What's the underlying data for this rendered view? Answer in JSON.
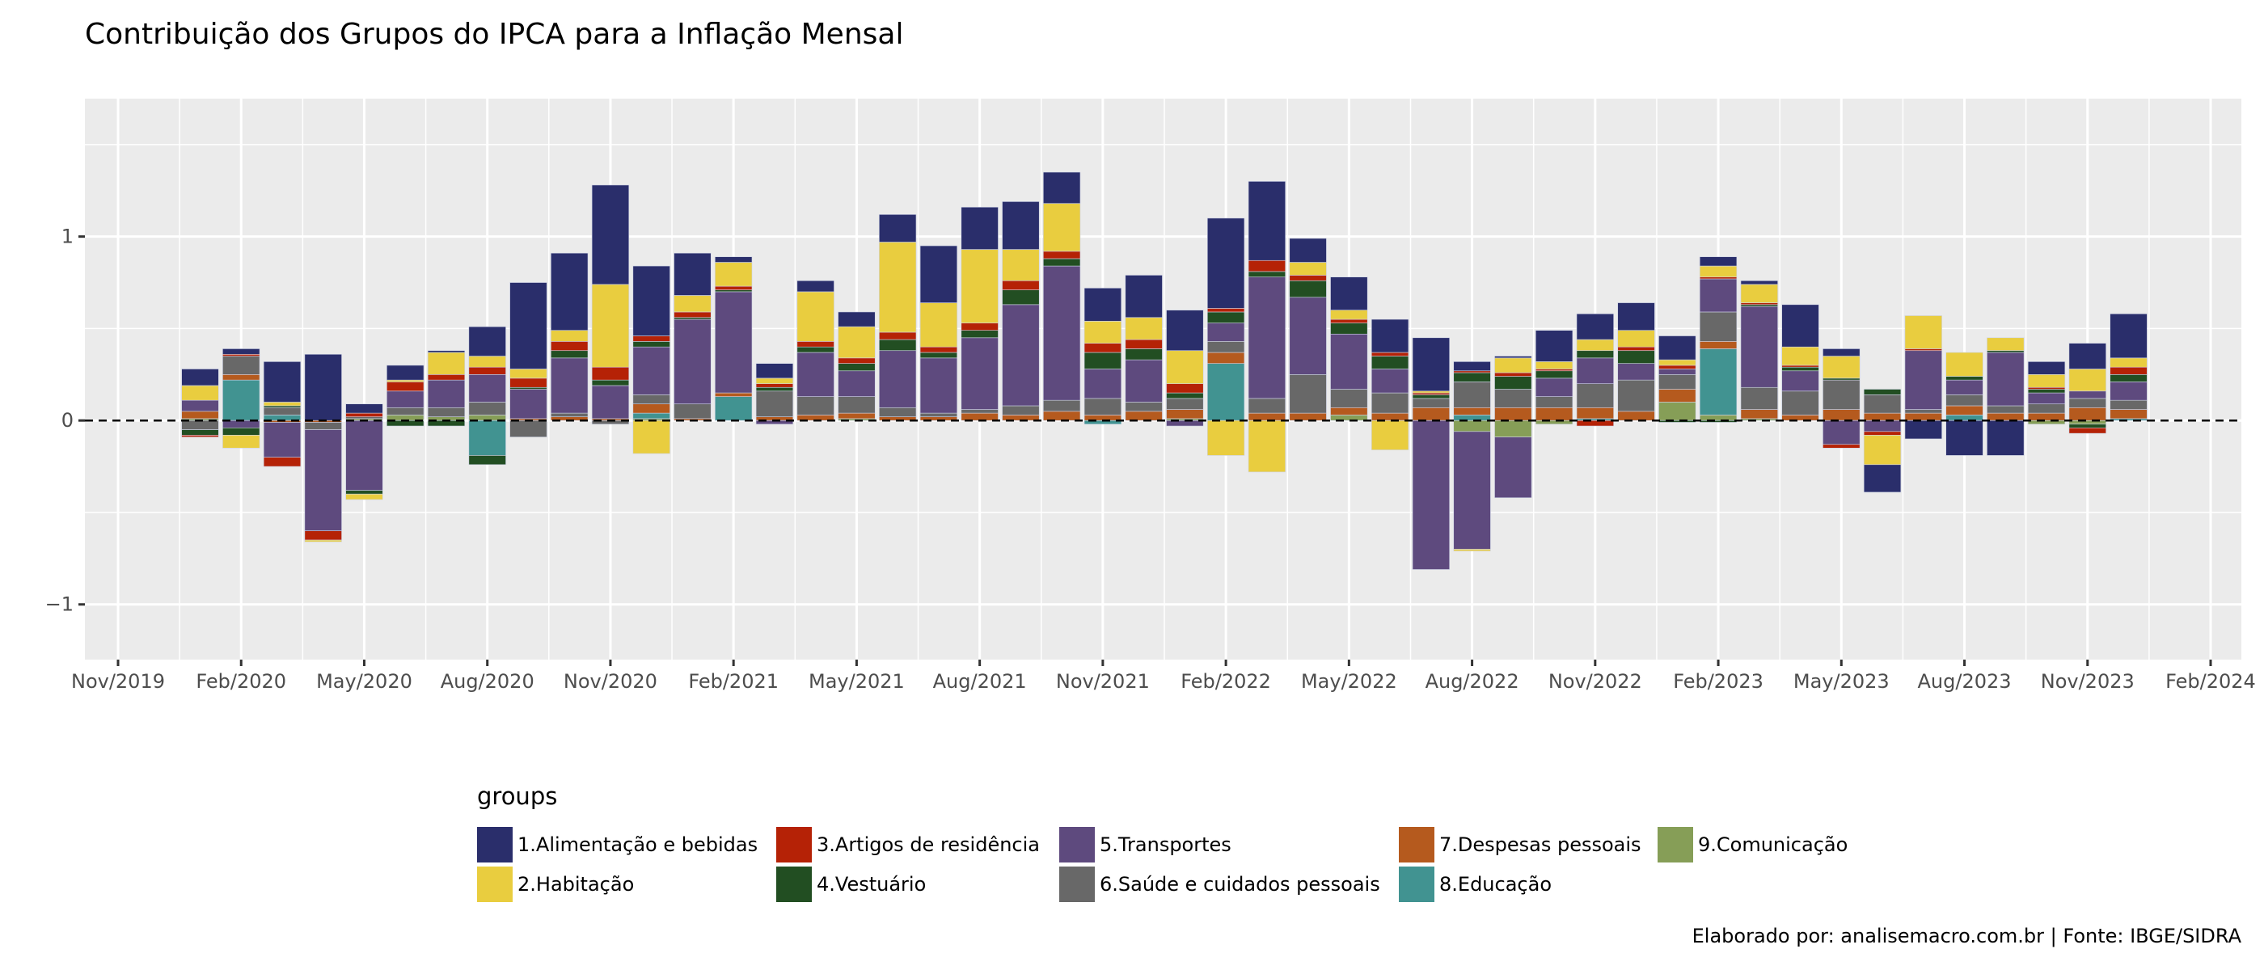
{
  "title": "Contribuição dos Grupos do IPCA para a Inflação Mensal",
  "caption": "Elaborado por: analisemacro.com.br | Fonte: IBGE/SIDRA",
  "chart_data": {
    "type": "bar",
    "stacked": true,
    "title": "Contribuição dos Grupos do IPCA para a Inflação Mensal",
    "xlabel": "",
    "ylabel": "",
    "ylim": [
      -1.3,
      1.75
    ],
    "y_ticks": [
      -1,
      0,
      1
    ],
    "y_tick_labels": [
      "−1",
      "0",
      "1"
    ],
    "x_ticks": [
      "Nov/2019",
      "Feb/2020",
      "May/2020",
      "Aug/2020",
      "Nov/2020",
      "Feb/2021",
      "May/2021",
      "Aug/2021",
      "Nov/2021",
      "Feb/2022",
      "May/2022",
      "Aug/2022",
      "Nov/2022",
      "Feb/2023",
      "May/2023",
      "Aug/2023",
      "Nov/2023",
      "Feb/2024"
    ],
    "x_tick_month_index": [
      -2,
      1,
      4,
      7,
      10,
      13,
      16,
      19,
      22,
      25,
      28,
      31,
      34,
      37,
      40,
      43,
      46,
      49
    ],
    "grid": true,
    "reference_line": {
      "y": 0,
      "style": "dashed",
      "color": "#000000"
    },
    "legend": {
      "title": "groups",
      "position": "bottom"
    },
    "categories": [
      "Jan/2020",
      "Feb/2020",
      "Mar/2020",
      "Apr/2020",
      "May/2020",
      "Jun/2020",
      "Jul/2020",
      "Aug/2020",
      "Sep/2020",
      "Oct/2020",
      "Nov/2020",
      "Dec/2020",
      "Jan/2021",
      "Feb/2021",
      "Mar/2021",
      "Apr/2021",
      "May/2021",
      "Jun/2021",
      "Jul/2021",
      "Aug/2021",
      "Sep/2021",
      "Oct/2021",
      "Nov/2021",
      "Dec/2021",
      "Jan/2022",
      "Feb/2022",
      "Mar/2022",
      "Apr/2022",
      "May/2022",
      "Jun/2022",
      "Jul/2022",
      "Aug/2022",
      "Sep/2022",
      "Oct/2022",
      "Nov/2022",
      "Dec/2022",
      "Jan/2023",
      "Feb/2023",
      "Mar/2023",
      "Apr/2023",
      "May/2023",
      "Jun/2023",
      "Jul/2023",
      "Aug/2023",
      "Sep/2023",
      "Oct/2023",
      "Nov/2023",
      "Dec/2023"
    ],
    "series": [
      {
        "name": "1.Alimentação e bebidas",
        "color": "#2a2e6b",
        "values": [
          0.09,
          0.03,
          0.22,
          0.36,
          0.05,
          0.08,
          0.01,
          0.16,
          0.47,
          0.42,
          0.54,
          0.38,
          0.23,
          0.03,
          0.08,
          0.06,
          0.08,
          0.15,
          0.31,
          0.23,
          0.26,
          0.17,
          0.18,
          0.23,
          0.22,
          0.49,
          0.43,
          0.13,
          0.18,
          0.18,
          0.29,
          0.05,
          0.01,
          0.17,
          0.14,
          0.15,
          0.13,
          0.05,
          0.02,
          0.23,
          0.04,
          -0.15,
          -0.1,
          -0.19,
          -0.19,
          0.07,
          0.14,
          0.24
        ]
      },
      {
        "name": "2.Habitação",
        "color": "#e9cd3f",
        "values": [
          0.08,
          -0.07,
          0.02,
          -0.01,
          -0.03,
          0.01,
          0.12,
          0.06,
          0.05,
          0.06,
          0.45,
          -0.18,
          0.09,
          0.13,
          0.03,
          0.27,
          0.17,
          0.49,
          0.24,
          0.4,
          0.17,
          0.26,
          0.12,
          0.12,
          0.18,
          -0.19,
          -0.28,
          0.07,
          0.05,
          -0.16,
          0.01,
          -0.01,
          0.08,
          0.04,
          0.06,
          0.09,
          0.03,
          0.06,
          0.1,
          0.1,
          0.12,
          -0.16,
          0.18,
          0.13,
          0.07,
          0.07,
          0.12,
          0.05
        ]
      },
      {
        "name": "3.Artigos de residência",
        "color": "#b52206",
        "values": [
          -0.01,
          0.01,
          -0.05,
          -0.05,
          0.02,
          0.05,
          0.03,
          0.04,
          0.05,
          0.05,
          0.07,
          0.03,
          0.03,
          0.02,
          0.02,
          0.03,
          0.03,
          0.04,
          0.03,
          0.04,
          0.05,
          0.04,
          0.05,
          0.05,
          0.05,
          0.02,
          0.06,
          0.03,
          0.02,
          0.02,
          0.01,
          0.01,
          0.02,
          0.01,
          -0.03,
          0.02,
          0.02,
          0.01,
          0.01,
          0.01,
          -0.02,
          -0.02,
          0.01,
          0.0,
          0.0,
          0.01,
          -0.03,
          0.04
        ]
      },
      {
        "name": "4.Vestuário",
        "color": "#224e22",
        "values": [
          -0.03,
          -0.04,
          0.01,
          0.0,
          -0.02,
          -0.03,
          -0.03,
          -0.05,
          0.01,
          0.04,
          0.03,
          0.03,
          0.01,
          0.01,
          0.02,
          0.03,
          0.04,
          0.06,
          0.03,
          0.04,
          0.08,
          0.04,
          0.09,
          0.06,
          0.03,
          0.06,
          0.03,
          0.09,
          0.06,
          0.07,
          0.02,
          0.05,
          0.07,
          0.04,
          0.04,
          0.07,
          -0.01,
          -0.01,
          0.01,
          0.02,
          0.01,
          0.03,
          0.0,
          0.02,
          0.01,
          0.02,
          -0.02,
          0.04
        ]
      },
      {
        "name": "5.Transportes",
        "color": "#5e4a7e",
        "values": [
          0.06,
          -0.04,
          -0.19,
          -0.55,
          -0.38,
          0.09,
          0.15,
          0.15,
          0.16,
          0.3,
          0.18,
          0.26,
          0.46,
          0.55,
          -0.02,
          0.24,
          0.14,
          0.31,
          0.3,
          0.39,
          0.55,
          0.73,
          0.16,
          0.23,
          -0.03,
          0.1,
          0.66,
          0.42,
          0.3,
          0.13,
          -0.81,
          -0.64,
          -0.33,
          0.1,
          0.14,
          0.09,
          0.03,
          0.18,
          0.44,
          0.11,
          -0.13,
          -0.06,
          0.32,
          0.08,
          0.29,
          0.06,
          0.04,
          0.1
        ]
      },
      {
        "name": "6.Saúde e cuidados pessoais",
        "color": "#686868",
        "values": [
          -0.05,
          0.1,
          0.04,
          -0.04,
          0.01,
          0.04,
          0.05,
          0.07,
          -0.09,
          0.02,
          -0.02,
          0.05,
          0.08,
          0.0,
          0.14,
          0.1,
          0.09,
          0.05,
          0.02,
          0.02,
          0.05,
          0.06,
          0.09,
          0.05,
          0.06,
          0.06,
          0.08,
          0.21,
          0.1,
          0.11,
          0.05,
          0.14,
          0.1,
          0.06,
          0.13,
          0.17,
          0.08,
          0.16,
          0.12,
          0.13,
          0.16,
          0.1,
          0.02,
          0.06,
          0.04,
          0.05,
          0.05,
          0.05
        ]
      },
      {
        "name": "7.Despesas pessoais",
        "color": "#b55a1e",
        "values": [
          0.04,
          0.03,
          -0.01,
          -0.01,
          0.0,
          0.0,
          0.0,
          0.0,
          0.01,
          0.02,
          0.01,
          0.05,
          0.01,
          0.02,
          0.02,
          0.03,
          0.03,
          0.02,
          0.02,
          0.04,
          0.03,
          0.05,
          0.03,
          0.05,
          0.05,
          0.06,
          0.04,
          0.04,
          0.04,
          0.04,
          0.07,
          0.04,
          0.07,
          0.07,
          0.06,
          0.05,
          0.07,
          0.04,
          0.05,
          0.03,
          0.06,
          0.04,
          0.04,
          0.05,
          0.04,
          0.04,
          0.07,
          0.05
        ]
      },
      {
        "name": "8.Educação",
        "color": "#419391",
        "values": [
          0.0,
          0.22,
          0.03,
          0.0,
          0.0,
          0.0,
          0.0,
          -0.19,
          0.0,
          0.0,
          0.0,
          0.03,
          0.0,
          0.13,
          0.0,
          0.0,
          0.0,
          0.0,
          0.0,
          0.0,
          0.0,
          0.0,
          -0.02,
          0.0,
          0.0,
          0.31,
          0.0,
          0.0,
          0.0,
          0.0,
          0.0,
          0.03,
          0.0,
          0.0,
          0.01,
          0.0,
          0.0,
          0.36,
          0.0,
          0.0,
          0.0,
          0.0,
          0.0,
          0.03,
          0.0,
          0.0,
          0.0,
          0.01
        ]
      },
      {
        "name": "9.Comunicação",
        "color": "#869e57",
        "values": [
          0.01,
          0.0,
          0.0,
          0.0,
          0.01,
          0.03,
          0.02,
          0.03,
          0.0,
          0.0,
          0.0,
          0.01,
          0.0,
          0.0,
          0.0,
          0.0,
          0.01,
          0.0,
          0.0,
          0.0,
          0.0,
          0.0,
          0.0,
          0.0,
          0.01,
          0.0,
          0.0,
          0.0,
          0.03,
          0.0,
          0.0,
          -0.06,
          -0.09,
          -0.02,
          0.0,
          0.0,
          0.1,
          0.03,
          0.01,
          0.0,
          0.0,
          0.0,
          0.0,
          0.0,
          0.0,
          -0.02,
          -0.02,
          0.0
        ]
      }
    ]
  }
}
